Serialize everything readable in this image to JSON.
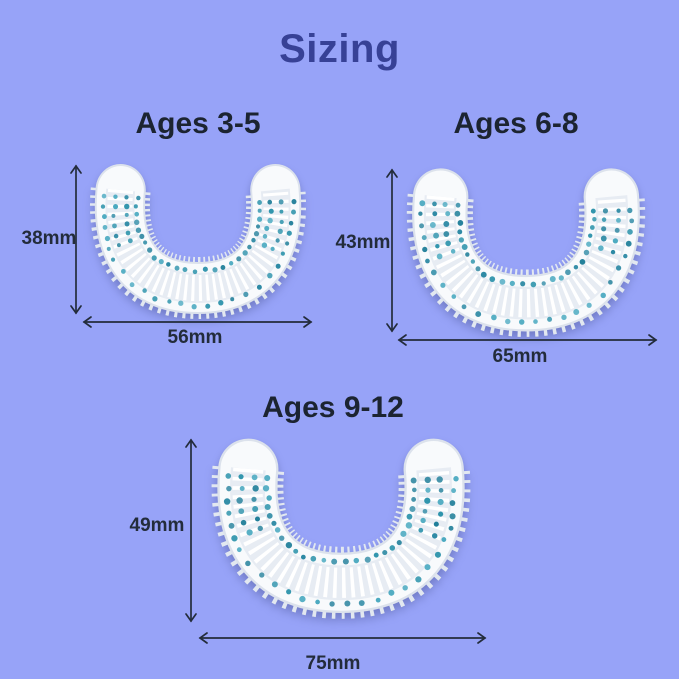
{
  "title": {
    "text": "Sizing"
  },
  "figures": [
    {
      "age_label": "Ages 3-5",
      "height_label": "38mm",
      "width_label": "56mm",
      "height_mm": 38,
      "width_mm": 56
    },
    {
      "age_label": "Ages 6-8",
      "height_label": "43mm",
      "width_label": "65mm",
      "height_mm": 43,
      "width_mm": 65
    },
    {
      "age_label": "Ages 9-12",
      "height_label": "49mm",
      "width_label": "75mm",
      "height_mm": 49,
      "width_mm": 75
    }
  ],
  "colors": {
    "background": "#97a3f8",
    "title_text": "#374196",
    "heading_text": "#1c2431",
    "dimension_text": "#232c3b",
    "dot_teal": "#2f94ac",
    "silicone_body": "#f8fafc"
  }
}
